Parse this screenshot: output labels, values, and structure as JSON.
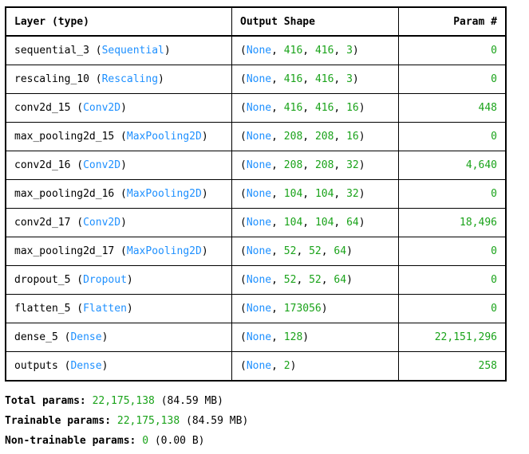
{
  "header": {
    "layer": "Layer (type)",
    "shape": "Output Shape",
    "param": "Param #"
  },
  "rows": [
    {
      "name": "sequential_3",
      "type": "Sequential",
      "shape": [
        "416",
        "416",
        "3"
      ],
      "param": "0"
    },
    {
      "name": "rescaling_10",
      "type": "Rescaling",
      "shape": [
        "416",
        "416",
        "3"
      ],
      "param": "0"
    },
    {
      "name": "conv2d_15",
      "type": "Conv2D",
      "shape": [
        "416",
        "416",
        "16"
      ],
      "param": "448"
    },
    {
      "name": "max_pooling2d_15",
      "type": "MaxPooling2D",
      "shape": [
        "208",
        "208",
        "16"
      ],
      "param": "0"
    },
    {
      "name": "conv2d_16",
      "type": "Conv2D",
      "shape": [
        "208",
        "208",
        "32"
      ],
      "param": "4,640"
    },
    {
      "name": "max_pooling2d_16",
      "type": "MaxPooling2D",
      "shape": [
        "104",
        "104",
        "32"
      ],
      "param": "0"
    },
    {
      "name": "conv2d_17",
      "type": "Conv2D",
      "shape": [
        "104",
        "104",
        "64"
      ],
      "param": "18,496"
    },
    {
      "name": "max_pooling2d_17",
      "type": "MaxPooling2D",
      "shape": [
        "52",
        "52",
        "64"
      ],
      "param": "0"
    },
    {
      "name": "dropout_5",
      "type": "Dropout",
      "shape": [
        "52",
        "52",
        "64"
      ],
      "param": "0"
    },
    {
      "name": "flatten_5",
      "type": "Flatten",
      "shape": [
        "173056"
      ],
      "param": "0"
    },
    {
      "name": "dense_5",
      "type": "Dense",
      "shape": [
        "128"
      ],
      "param": "22,151,296"
    },
    {
      "name": "outputs",
      "type": "Dense",
      "shape": [
        "2"
      ],
      "param": "258"
    }
  ],
  "none_token": "None",
  "totals": {
    "total": {
      "label": "Total params:",
      "value": "22,175,138",
      "size": "(84.59 MB)"
    },
    "trainable": {
      "label": "Trainable params:",
      "value": "22,175,138",
      "size": "(84.59 MB)"
    },
    "non_trainable": {
      "label": "Non-trainable params:",
      "value": "0",
      "size": "(0.00 B)"
    }
  },
  "colors": {
    "type_blue": "#1e90ff",
    "number_green": "#1aa31a"
  }
}
